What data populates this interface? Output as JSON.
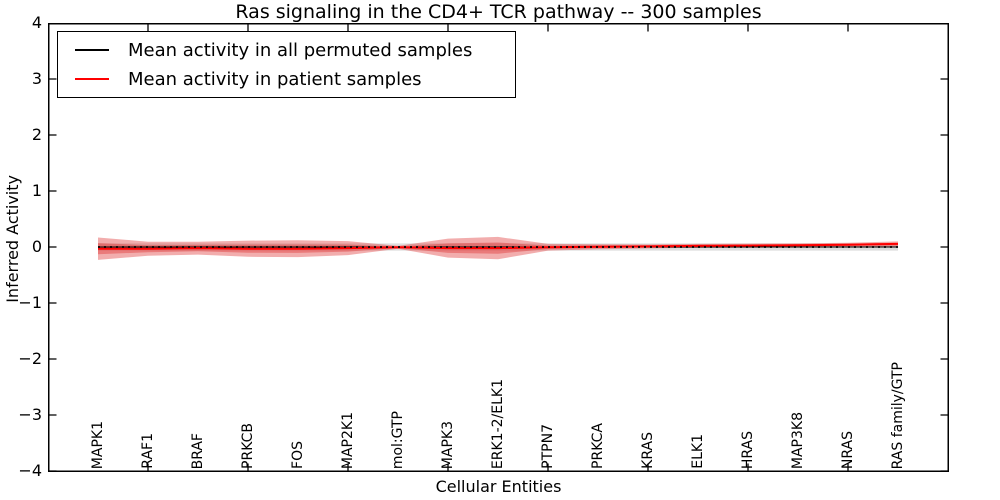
{
  "chart_data": {
    "type": "line",
    "title": "Ras signaling in the CD4+ TCR pathway -- 300 samples",
    "xlabel": "Cellular Entities",
    "ylabel": "Inferred Activity",
    "ylim": [
      -4,
      4
    ],
    "yticks": [
      "4",
      "3",
      "2",
      "1",
      "0",
      "−1",
      "−2",
      "−3",
      "−4"
    ],
    "ytick_values": [
      4,
      3,
      2,
      1,
      0,
      -1,
      -2,
      -3,
      -4
    ],
    "grid": false,
    "legend_position": "upper left",
    "categories": [
      "MAPK1",
      "RAF1",
      "BRAF",
      "PRKCB",
      "FOS",
      "MAP2K1",
      "mol:GTP",
      "MAPK3",
      "ERK1-2/ELK1",
      "PTPN7",
      "PRKCA",
      "KRAS",
      "ELK1",
      "HRAS",
      "MAP3K8",
      "NRAS",
      "RAS family/GTP"
    ],
    "series": [
      {
        "name": "Mean activity in all permuted samples",
        "color": "#000000",
        "band_color": "#aaaaaa",
        "values": [
          0,
          0,
          0,
          0,
          0,
          0,
          0,
          0,
          0,
          0,
          0,
          0,
          0,
          0,
          0,
          0,
          0
        ],
        "std": [
          0.065,
          0.065,
          0.065,
          0.065,
          0.065,
          0.065,
          0.065,
          0.065,
          0.065,
          0.065,
          0.065,
          0.065,
          0.065,
          0.065,
          0.065,
          0.065,
          0.065
        ]
      },
      {
        "name": "Mean activity in patient samples",
        "color": "#ff0000",
        "band_color": "#e13c3c",
        "values": [
          -0.03,
          -0.03,
          -0.02,
          -0.03,
          -0.03,
          -0.02,
          -0.005,
          -0.02,
          -0.02,
          -0.005,
          0.005,
          0.01,
          0.02,
          0.025,
          0.03,
          0.04,
          0.055
        ],
        "std": [
          0.2,
          0.125,
          0.115,
          0.145,
          0.15,
          0.125,
          0.025,
          0.17,
          0.2,
          0.06,
          0.045,
          0.035,
          0.035,
          0.035,
          0.035,
          0.035,
          0.045
        ]
      }
    ]
  },
  "legend": {
    "items": [
      {
        "label": "Mean activity in all permuted samples",
        "color": "#000000"
      },
      {
        "label": "Mean activity in patient samples",
        "color": "#ff0000"
      }
    ]
  }
}
